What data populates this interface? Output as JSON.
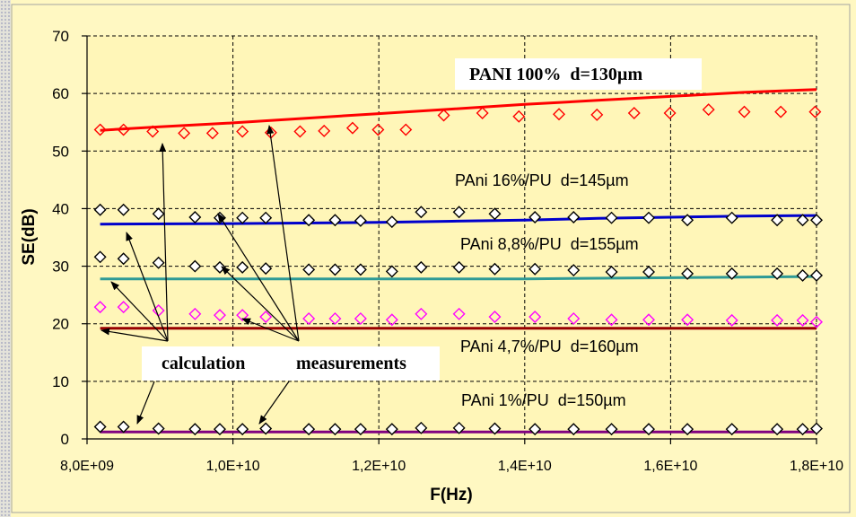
{
  "chart_data": {
    "type": "line",
    "title": "",
    "xlabel": "F(Hz)",
    "ylabel": "SE(dB)",
    "xlim": [
      8000000000.0,
      18000000000.0
    ],
    "ylim": [
      0,
      70
    ],
    "x_ticks": [
      8000000000.0,
      10000000000.0,
      12000000000.0,
      14000000000.0,
      16000000000.0,
      18000000000.0
    ],
    "x_tick_labels": [
      "8,0E+09",
      "1,0E+10",
      "1,2E+10",
      "1,4E+10",
      "1,6E+10",
      "1,8E+10"
    ],
    "y_ticks": [
      0,
      10,
      20,
      30,
      40,
      50,
      60,
      70
    ],
    "y_tick_labels": [
      "0",
      "10",
      "20",
      "30",
      "40",
      "50",
      "60",
      "70"
    ],
    "grid": true,
    "grid_style": "dashed",
    "legend": "none",
    "annotations": [
      "calculation",
      "measurements"
    ],
    "series": [
      {
        "label": "PANI 100%  d=130µm",
        "calculation": {
          "color": "#FF0000",
          "x": [
            8180000000.0,
            9000000000.0,
            10000000000.0,
            11000000000.0,
            12000000000.0,
            13000000000.0,
            14000000000.0,
            15000000000.0,
            16000000000.0,
            17000000000.0,
            18000000000.0
          ],
          "y": [
            53.6,
            54.2,
            54.9,
            55.7,
            56.5,
            57.3,
            58.1,
            58.8,
            59.5,
            60.2,
            60.7
          ]
        },
        "measurements": {
          "marker": "diamond",
          "color": "#FF0000",
          "fill": "none",
          "x": [
            8180000000.0,
            8500000000.0,
            8900000000.0,
            9330000000.0,
            9720000000.0,
            10130000000.0,
            10520000000.0,
            10920000000.0,
            11250000000.0,
            11640000000.0,
            11990000000.0,
            12370000000.0,
            12890000000.0,
            13420000000.0,
            13920000000.0,
            14470000000.0,
            14990000000.0,
            15500000000.0,
            15990000000.0,
            16520000000.0,
            17010000000.0,
            17510000000.0,
            17980000000.0
          ],
          "y": [
            53.7,
            53.7,
            53.4,
            53.1,
            53.1,
            53.4,
            53.2,
            53.4,
            53.5,
            54.0,
            53.7,
            53.7,
            56.2,
            56.6,
            56.0,
            56.4,
            56.3,
            56.6,
            56.6,
            57.2,
            56.8,
            56.8,
            56.8
          ]
        }
      },
      {
        "label": "PAni 16%/PU  d=145µm",
        "calculation": {
          "color": "#0000CC",
          "x": [
            8180000000.0,
            10000000000.0,
            12000000000.0,
            13000000000.0,
            14000000000.0,
            15000000000.0,
            16000000000.0,
            17000000000.0,
            18000000000.0
          ],
          "y": [
            37.3,
            37.4,
            37.6,
            37.8,
            38.0,
            38.3,
            38.5,
            38.7,
            38.8
          ]
        },
        "measurements": {
          "marker": "diamond",
          "color": "#000000",
          "fill": "#FFFFFF",
          "x": [
            8180000000.0,
            8500000000.0,
            8980000000.0,
            9480000000.0,
            9820000000.0,
            10130000000.0,
            10450000000.0,
            11040000000.0,
            11400000000.0,
            11750000000.0,
            12180000000.0,
            12580000000.0,
            13100000000.0,
            13590000000.0,
            14140000000.0,
            14670000000.0,
            15190000000.0,
            15700000000.0,
            16230000000.0,
            16840000000.0,
            17460000000.0,
            17810000000.0,
            18000000000.0
          ],
          "y": [
            39.8,
            39.8,
            39.1,
            38.5,
            38.4,
            38.4,
            38.4,
            38.0,
            38.0,
            37.9,
            37.7,
            39.4,
            39.4,
            39.1,
            38.5,
            38.5,
            38.4,
            38.4,
            38.0,
            38.4,
            38.0,
            38.0,
            38.0
          ]
        }
      },
      {
        "label": "PAni 8,8%/PU  d=155µm",
        "calculation": {
          "color": "#2E9A96",
          "x": [
            8180000000.0,
            12000000000.0,
            14000000000.0,
            15000000000.0,
            16000000000.0,
            17000000000.0,
            18000000000.0
          ],
          "y": [
            27.8,
            27.8,
            27.8,
            27.9,
            28.0,
            28.1,
            28.2
          ]
        },
        "measurements": {
          "marker": "diamond",
          "color": "#000000",
          "fill": "#FFFFFF",
          "x": [
            8180000000.0,
            8500000000.0,
            8980000000.0,
            9480000000.0,
            9820000000.0,
            10130000000.0,
            10450000000.0,
            11040000000.0,
            11400000000.0,
            11750000000.0,
            12180000000.0,
            12580000000.0,
            13100000000.0,
            13590000000.0,
            14140000000.0,
            14670000000.0,
            15190000000.0,
            15700000000.0,
            16230000000.0,
            16840000000.0,
            17460000000.0,
            17810000000.0,
            18000000000.0
          ],
          "y": [
            31.6,
            31.3,
            30.6,
            30.0,
            29.8,
            29.8,
            29.6,
            29.4,
            29.4,
            29.4,
            29.1,
            29.8,
            29.8,
            29.5,
            29.5,
            29.3,
            29.0,
            29.0,
            28.7,
            28.7,
            28.7,
            28.4,
            28.4
          ]
        }
      },
      {
        "label": "PAni 4,7%/PU  d=160µm",
        "calculation": {
          "color": "#990000",
          "x": [
            8180000000.0,
            10000000000.0,
            12000000000.0,
            14000000000.0,
            16000000000.0,
            18000000000.0
          ],
          "y": [
            19.2,
            19.2,
            19.2,
            19.2,
            19.2,
            19.2
          ]
        },
        "measurements": {
          "marker": "diamond",
          "color": "#FF00FF",
          "fill": "none",
          "x": [
            8180000000.0,
            8500000000.0,
            8980000000.0,
            9480000000.0,
            9820000000.0,
            10130000000.0,
            10450000000.0,
            11040000000.0,
            11400000000.0,
            11750000000.0,
            12180000000.0,
            12580000000.0,
            13100000000.0,
            13590000000.0,
            14140000000.0,
            14670000000.0,
            15190000000.0,
            15700000000.0,
            16230000000.0,
            16840000000.0,
            17460000000.0,
            17810000000.0,
            18000000000.0
          ],
          "y": [
            22.9,
            22.9,
            22.3,
            21.7,
            21.5,
            21.5,
            21.2,
            20.9,
            20.9,
            20.9,
            20.7,
            21.7,
            21.7,
            21.2,
            21.2,
            20.9,
            20.7,
            20.7,
            20.7,
            20.6,
            20.6,
            20.6,
            20.3
          ]
        }
      },
      {
        "label": "PAni 1%/PU  d=150µm",
        "calculation": {
          "color": "#800080",
          "x": [
            8180000000.0,
            10000000000.0,
            12000000000.0,
            14000000000.0,
            16000000000.0,
            18000000000.0
          ],
          "y": [
            1.2,
            1.2,
            1.2,
            1.2,
            1.2,
            1.2
          ]
        },
        "measurements": {
          "marker": "diamond",
          "color": "#000000",
          "fill": "#FFFFFF",
          "x": [
            8180000000.0,
            8500000000.0,
            8980000000.0,
            9480000000.0,
            9820000000.0,
            10130000000.0,
            10450000000.0,
            11040000000.0,
            11400000000.0,
            11750000000.0,
            12180000000.0,
            12580000000.0,
            13100000000.0,
            13590000000.0,
            14140000000.0,
            14670000000.0,
            15190000000.0,
            15700000000.0,
            16230000000.0,
            16840000000.0,
            17460000000.0,
            17810000000.0,
            18000000000.0
          ],
          "y": [
            2.1,
            2.1,
            1.8,
            1.7,
            1.7,
            1.7,
            1.8,
            1.7,
            1.7,
            1.7,
            1.7,
            1.9,
            1.9,
            1.8,
            1.7,
            1.7,
            1.7,
            1.7,
            1.7,
            1.7,
            1.7,
            1.7,
            1.8
          ]
        }
      }
    ]
  },
  "colors": {
    "background": "#FFF8C2",
    "plot_background": "#FFF6B8",
    "annotation_box": "#FFFFFF",
    "grid": "#000000"
  }
}
